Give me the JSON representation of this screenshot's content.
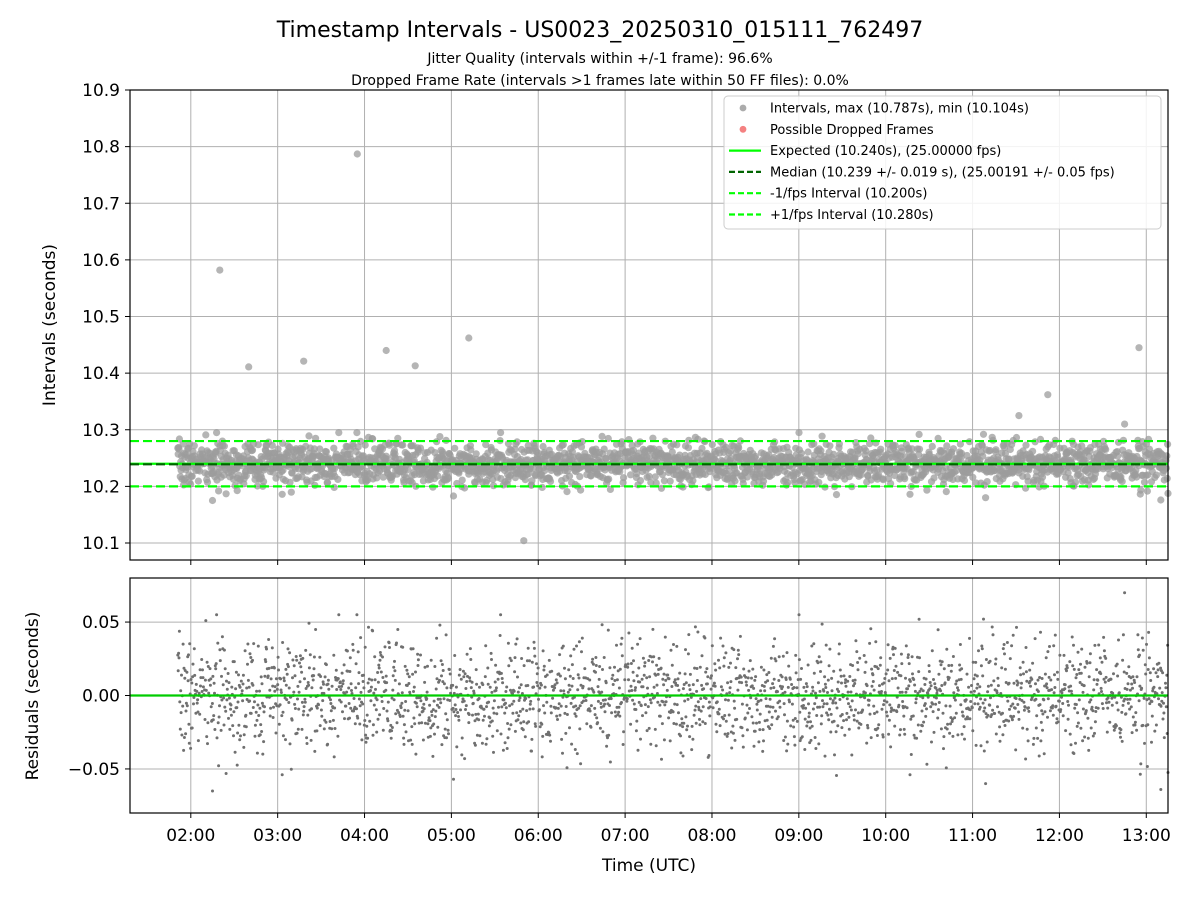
{
  "chart_data": [
    {
      "type": "scatter",
      "title": "Timestamp Intervals - US0023_20250310_015111_762497",
      "subtitle_lines": [
        "Jitter Quality (intervals within +/-1 frame): 96.6%",
        "Dropped Frame Rate (intervals >1 frames late within 50 FF files): 0.0%"
      ],
      "xlabel": "",
      "ylabel": "Intervals (seconds)",
      "ylim": [
        10.07,
        10.9
      ],
      "yticks": [
        "10.1",
        "10.2",
        "10.3",
        "10.4",
        "10.5",
        "10.6",
        "10.7",
        "10.8",
        "10.9"
      ],
      "grid": true,
      "legend_placement": "top-right",
      "legend": [
        {
          "label": "Intervals, max (10.787s), min (10.104s)",
          "kind": "marker",
          "color": "#9c9c9c"
        },
        {
          "label": "Possible Dropped Frames",
          "kind": "marker",
          "color": "#f26b6b"
        },
        {
          "label": "Expected (10.240s), (25.00000 fps)",
          "kind": "line",
          "color": "#00ff00"
        },
        {
          "label": "Median (10.239 +/- 0.019 s), (25.00191 +/- 0.05 fps)",
          "kind": "dashed",
          "color": "#006400"
        },
        {
          "label": "-1/fps Interval (10.200s)",
          "kind": "dashed",
          "color": "#00ff00"
        },
        {
          "label": "+1/fps Interval (10.280s)",
          "kind": "dashed",
          "color": "#00ff00"
        }
      ],
      "reference_lines": {
        "expected": 10.24,
        "median": 10.239,
        "minus_1fps": 10.2,
        "plus_1fps": 10.28
      },
      "series": [
        {
          "name": "Intervals, max (10.787s), min (10.104s)",
          "generated_range": {
            "x_start": "01:51",
            "x_end": "13:15",
            "center": 10.24,
            "spread": 0.019,
            "count": 2400,
            "seed": 7
          },
          "outliers": [
            {
              "x": "02:15",
              "y": 10.175
            },
            {
              "x": "02:20",
              "y": 10.582
            },
            {
              "x": "02:40",
              "y": 10.411
            },
            {
              "x": "03:18",
              "y": 10.421
            },
            {
              "x": "03:55",
              "y": 10.787
            },
            {
              "x": "04:15",
              "y": 10.44
            },
            {
              "x": "04:35",
              "y": 10.413
            },
            {
              "x": "05:12",
              "y": 10.462
            },
            {
              "x": "05:50",
              "y": 10.104
            },
            {
              "x": "11:52",
              "y": 10.362
            },
            {
              "x": "11:32",
              "y": 10.325
            },
            {
              "x": "12:45",
              "y": 10.31
            },
            {
              "x": "12:55",
              "y": 10.445
            },
            {
              "x": "13:10",
              "y": 10.176
            }
          ]
        },
        {
          "name": "Possible Dropped Frames",
          "x": [],
          "y": []
        }
      ]
    },
    {
      "type": "scatter",
      "xlabel": "Time (UTC)",
      "ylabel": "Residuals (seconds)",
      "ylim": [
        -0.08,
        0.08
      ],
      "yticks": [
        "−0.05",
        "0.00",
        "0.05"
      ],
      "xticks": [
        "02:00",
        "03:00",
        "04:00",
        "05:00",
        "06:00",
        "07:00",
        "08:00",
        "09:00",
        "10:00",
        "11:00",
        "12:00",
        "13:00"
      ],
      "xlim": [
        "01:18",
        "13:15"
      ],
      "grid": true,
      "zero_line_color": "#00cc00",
      "series": [
        {
          "name": "Residuals",
          "derived_from": "intervals minus 10.240",
          "color": "#707070"
        }
      ]
    }
  ],
  "colors": {
    "points": "#9c9c9c",
    "residual_points": "#707070",
    "expected": "#00ff00",
    "median": "#006400",
    "grid": "#b0b0b0"
  }
}
